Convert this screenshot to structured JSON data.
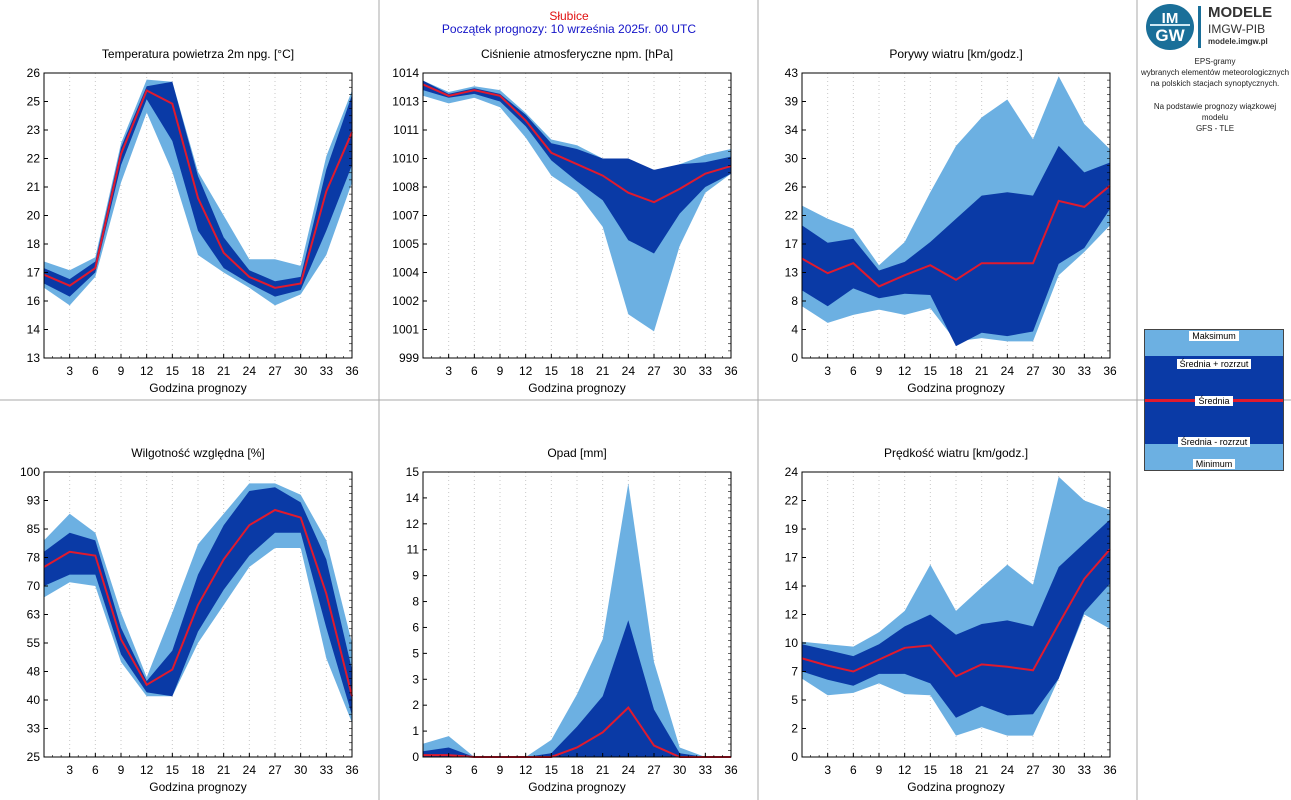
{
  "header": {
    "station": "Słubice",
    "forecast_start": "Początek prognozy: 10 września 2025r. 00 UTC"
  },
  "logo": {
    "mark_line1": "IM",
    "mark_line2": "GW",
    "title": "MODELE",
    "subtitle": "IMGW-PIB",
    "url": "modele.imgw.pl"
  },
  "side": {
    "desc_lines": [
      "EPS-gramy",
      "wybranych elementów meteorologicznych",
      "na polskich stacjach  synoptycznych."
    ],
    "model_lines": [
      "Na podstawie prognozy wiązkowej modelu",
      "GFS - TLE"
    ]
  },
  "legend": {
    "max": "Maksimum",
    "mean_plus": "Średnia + rozrzut",
    "mean": "Średnia",
    "mean_minus": "Średnia - rozrzut",
    "min": "Minimum"
  },
  "colors": {
    "light_band": "#6cb0e2",
    "dark_band": "#0a3aa6",
    "mean_line": "#e01a2e",
    "station_text": "#e01010",
    "start_text": "#1414c8"
  },
  "chart_data": [
    {
      "type": "area",
      "title": "Temperatura powietrza 2m npg. [°C]",
      "xlabel": "Godzina prognozy",
      "x": [
        0,
        3,
        6,
        9,
        12,
        15,
        18,
        21,
        24,
        27,
        30,
        33,
        36
      ],
      "xticks": [
        "3",
        "6",
        "9",
        "12",
        "15",
        "18",
        "21",
        "24",
        "27",
        "30",
        "33",
        "36"
      ],
      "ylim": [
        13,
        26
      ],
      "yticks": [
        "13",
        "14",
        "16",
        "17",
        "18",
        "20",
        "21",
        "22",
        "23",
        "25",
        "26"
      ],
      "series": [
        {
          "name": "Maksimum",
          "values": [
            17.4,
            17.0,
            17.6,
            22.8,
            25.7,
            25.6,
            21.5,
            19.5,
            17.5,
            17.5,
            17.2,
            22.2,
            25.2
          ]
        },
        {
          "name": "Średnia + rozrzut",
          "values": [
            17.1,
            16.6,
            17.4,
            22.6,
            25.4,
            25.6,
            21.3,
            18.5,
            17.0,
            16.5,
            16.7,
            21.6,
            25.0
          ]
        },
        {
          "name": "Średnia",
          "values": [
            16.8,
            16.3,
            17.1,
            22.3,
            25.2,
            24.6,
            20.3,
            17.8,
            16.7,
            16.2,
            16.4,
            20.6,
            23.3
          ]
        },
        {
          "name": "Średnia - rozrzut",
          "values": [
            16.4,
            15.8,
            16.9,
            21.8,
            24.8,
            22.9,
            18.8,
            17.1,
            16.4,
            15.8,
            16.1,
            18.8,
            21.8
          ]
        },
        {
          "name": "Minimum",
          "values": [
            16.2,
            15.4,
            16.7,
            21.0,
            24.2,
            21.5,
            17.7,
            16.9,
            16.2,
            15.4,
            15.9,
            17.7,
            21.0
          ]
        }
      ]
    },
    {
      "type": "area",
      "title": "Ciśnienie atmosferyczne npm. [hPa]",
      "xlabel": "Godzina prognozy",
      "x": [
        0,
        3,
        6,
        9,
        12,
        15,
        18,
        21,
        24,
        27,
        30,
        33,
        36
      ],
      "xticks": [
        "3",
        "6",
        "9",
        "12",
        "15",
        "18",
        "21",
        "24",
        "27",
        "30",
        "33",
        "36"
      ],
      "ylim": [
        999,
        1014
      ],
      "yticks": [
        "999",
        "1001",
        "1002",
        "1004",
        "1005",
        "1007",
        "1008",
        "1010",
        "1011",
        "1013",
        "1014"
      ],
      "series": [
        {
          "name": "Maksimum",
          "values": [
            1013.6,
            1013.0,
            1013.3,
            1013.1,
            1011.9,
            1010.5,
            1010.2,
            1009.5,
            1009.1,
            1008.6,
            1009.2,
            1009.7,
            1010.0
          ]
        },
        {
          "name": "Średnia + rozrzut",
          "values": [
            1013.6,
            1012.9,
            1013.2,
            1012.9,
            1011.8,
            1010.3,
            1010.0,
            1009.5,
            1009.5,
            1008.9,
            1009.2,
            1009.3,
            1009.6
          ]
        },
        {
          "name": "Średnia",
          "values": [
            1013.4,
            1012.8,
            1013.1,
            1012.8,
            1011.5,
            1009.8,
            1009.2,
            1008.6,
            1007.7,
            1007.2,
            1007.9,
            1008.7,
            1009.1
          ]
        },
        {
          "name": "Średnia - rozrzut",
          "values": [
            1013.1,
            1012.7,
            1012.9,
            1012.5,
            1011.2,
            1009.4,
            1008.3,
            1007.3,
            1005.2,
            1004.5,
            1006.6,
            1008.0,
            1008.7
          ]
        },
        {
          "name": "Minimum",
          "values": [
            1012.8,
            1012.4,
            1012.7,
            1012.2,
            1010.6,
            1008.6,
            1007.7,
            1005.9,
            1001.3,
            1000.4,
            1004.9,
            1007.7,
            1008.7
          ]
        }
      ]
    },
    {
      "type": "area",
      "title": "Porywy wiatru [km/godz.]",
      "xlabel": "Godzina prognozy",
      "x": [
        0,
        3,
        6,
        9,
        12,
        15,
        18,
        21,
        24,
        27,
        30,
        33,
        36
      ],
      "xticks": [
        "3",
        "6",
        "9",
        "12",
        "15",
        "18",
        "21",
        "24",
        "27",
        "30",
        "33",
        "36"
      ],
      "ylim": [
        0,
        43
      ],
      "yticks": [
        "0",
        "4",
        "8",
        "13",
        "17",
        "22",
        "26",
        "30",
        "34",
        "39",
        "43"
      ],
      "series": [
        {
          "name": "Maksimum",
          "values": [
            23.0,
            21.0,
            19.5,
            14.0,
            17.5,
            25.0,
            32.0,
            36.3,
            39.0,
            33.0,
            42.5,
            35.3,
            31.5
          ]
        },
        {
          "name": "Średnia + rozrzut",
          "values": [
            20.0,
            17.4,
            18.0,
            13.2,
            14.5,
            17.5,
            21.0,
            24.5,
            25.0,
            24.5,
            32.0,
            28.0,
            29.5
          ]
        },
        {
          "name": "Średnia",
          "values": [
            15.0,
            12.8,
            14.3,
            10.8,
            12.5,
            14.0,
            11.8,
            14.3,
            14.3,
            14.3,
            23.7,
            22.8,
            26.0
          ]
        },
        {
          "name": "Średnia - rozrzut",
          "values": [
            10.2,
            7.8,
            10.5,
            9.0,
            9.7,
            9.5,
            1.8,
            3.8,
            3.3,
            4.0,
            14.2,
            16.6,
            22.5
          ]
        },
        {
          "name": "Minimum",
          "values": [
            7.8,
            5.3,
            6.5,
            7.3,
            6.5,
            7.5,
            2.5,
            3.0,
            2.5,
            2.5,
            12.5,
            16.0,
            20.0
          ]
        }
      ]
    },
    {
      "type": "area",
      "title": "Wilgotność względna [%]",
      "xlabel": "Godzina prognozy",
      "x": [
        0,
        3,
        6,
        9,
        12,
        15,
        18,
        21,
        24,
        27,
        30,
        33,
        36
      ],
      "xticks": [
        "3",
        "6",
        "9",
        "12",
        "15",
        "18",
        "21",
        "24",
        "27",
        "30",
        "33",
        "36"
      ],
      "ylim": [
        25,
        100
      ],
      "yticks": [
        "25",
        "33",
        "40",
        "48",
        "55",
        "63",
        "70",
        "78",
        "85",
        "93",
        "100"
      ],
      "series": [
        {
          "name": "Maksimum",
          "values": [
            82,
            89,
            84,
            63,
            46,
            63,
            81,
            89,
            97,
            97,
            94,
            82,
            55
          ]
        },
        {
          "name": "Średnia + rozrzut",
          "values": [
            79,
            84,
            82,
            59,
            45,
            53,
            73,
            86,
            95,
            96,
            92,
            77,
            48
          ]
        },
        {
          "name": "Średnia",
          "values": [
            75,
            79,
            78,
            56,
            44,
            48,
            65,
            77,
            86,
            90,
            88,
            68,
            41
          ]
        },
        {
          "name": "Średnia - rozrzut",
          "values": [
            70,
            73,
            73,
            52,
            42,
            41,
            58,
            69,
            78,
            84,
            84,
            59,
            36
          ]
        },
        {
          "name": "Minimum",
          "values": [
            67,
            71,
            70,
            50,
            41,
            41,
            55,
            65,
            75,
            80,
            80,
            51,
            34
          ]
        }
      ]
    },
    {
      "type": "area",
      "title": "Opad [mm]",
      "xlabel": "Godzina prognozy",
      "x": [
        0,
        3,
        6,
        9,
        12,
        15,
        18,
        21,
        24,
        27,
        30,
        33,
        36
      ],
      "xticks": [
        "3",
        "6",
        "9",
        "12",
        "15",
        "18",
        "21",
        "24",
        "27",
        "30",
        "33",
        "36"
      ],
      "ylim": [
        0,
        15
      ],
      "yticks": [
        "0",
        "1",
        "2",
        "3",
        "5",
        "6",
        "8",
        "9",
        "11",
        "12",
        "14",
        "15"
      ],
      "series": [
        {
          "name": "Maksimum",
          "values": [
            0.7,
            1.1,
            0.0,
            0.0,
            0.0,
            0.9,
            3.3,
            6.2,
            14.4,
            5.0,
            0.5,
            0.0,
            0.0
          ]
        },
        {
          "name": "Średnia + rozrzut",
          "values": [
            0.3,
            0.5,
            0.0,
            0.0,
            0.0,
            0.2,
            1.6,
            3.2,
            7.2,
            2.5,
            0.2,
            0.0,
            0.0
          ]
        },
        {
          "name": "Średnia",
          "values": [
            0.1,
            0.1,
            0.0,
            0.0,
            0.0,
            0.0,
            0.5,
            1.3,
            2.6,
            0.6,
            0.0,
            0.0,
            0.0
          ]
        },
        {
          "name": "Średnia - rozrzut",
          "values": [
            0.0,
            0.0,
            0.0,
            0.0,
            0.0,
            0.0,
            0.0,
            0.0,
            0.0,
            0.0,
            0.0,
            0.0,
            0.0
          ]
        },
        {
          "name": "Minimum",
          "values": [
            0.0,
            0.0,
            0.0,
            0.0,
            0.0,
            0.0,
            0.0,
            0.0,
            0.0,
            0.0,
            0.0,
            0.0,
            0.0
          ]
        }
      ]
    },
    {
      "type": "area",
      "title": "Prędkość wiatru [km/godz.]",
      "xlabel": "Godzina prognozy",
      "x": [
        0,
        3,
        6,
        9,
        12,
        15,
        18,
        21,
        24,
        27,
        30,
        33,
        36
      ],
      "xticks": [
        "3",
        "6",
        "9",
        "12",
        "15",
        "18",
        "21",
        "24",
        "27",
        "30",
        "33",
        "36"
      ],
      "ylim": [
        0,
        24
      ],
      "yticks": [
        "0",
        "2",
        "5",
        "7",
        "10",
        "12",
        "14",
        "17",
        "19",
        "22",
        "24"
      ],
      "series": [
        {
          "name": "Maksimum",
          "values": [
            9.7,
            9.5,
            9.3,
            10.5,
            12.3,
            16.2,
            12.3,
            14.3,
            16.2,
            14.5,
            23.6,
            21.6,
            20.8
          ]
        },
        {
          "name": "Średnia + rozrzut",
          "values": [
            9.5,
            9.0,
            8.5,
            9.5,
            11.0,
            12.0,
            10.3,
            11.2,
            11.5,
            11.0,
            16.0,
            18.0,
            20.0
          ]
        },
        {
          "name": "Średnia",
          "values": [
            8.3,
            7.7,
            7.2,
            8.2,
            9.2,
            9.4,
            6.8,
            7.8,
            7.6,
            7.3,
            11.2,
            15.0,
            17.5
          ]
        },
        {
          "name": "Średnia - rozrzut",
          "values": [
            7.2,
            6.5,
            6.0,
            7.0,
            7.0,
            6.2,
            3.3,
            4.3,
            3.5,
            3.6,
            6.6,
            12.2,
            14.6
          ]
        },
        {
          "name": "Minimum",
          "values": [
            6.6,
            5.2,
            5.4,
            6.2,
            5.3,
            5.2,
            1.8,
            2.5,
            1.8,
            1.8,
            6.6,
            12.0,
            10.8
          ]
        }
      ]
    }
  ]
}
